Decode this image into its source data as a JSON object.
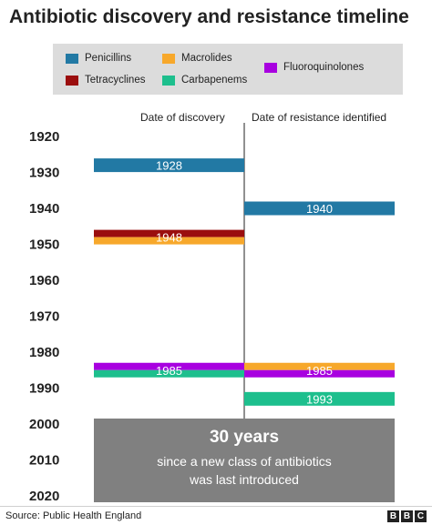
{
  "page": {
    "title": "Antibiotic discovery and resistance timeline",
    "source": "Source: Public Health England",
    "logo_letters": [
      "B",
      "B",
      "C"
    ]
  },
  "colors": {
    "Penicillins": "#2279a4",
    "Macrolides": "#f7a82b",
    "Fluoroquinolones": "#a800e0",
    "Tetracyclines": "#9b0e0e",
    "Carbapenems": "#1dbf8d",
    "note_bg": "#808080",
    "axis_line": "#222222"
  },
  "legend": {
    "items": [
      {
        "label": "Penicillins",
        "color": "#2279a4"
      },
      {
        "label": "Macrolides",
        "color": "#f7a82b"
      },
      {
        "label": "Fluoroquinolones",
        "color": "#a800e0"
      },
      {
        "label": "Tetracyclines",
        "color": "#9b0e0e"
      },
      {
        "label": "Carbapenems",
        "color": "#1dbf8d"
      }
    ]
  },
  "columns": {
    "discovery": "Date of discovery",
    "resistance": "Date of resistance identified"
  },
  "note": {
    "headline": "30 years",
    "line1": "since a new class of antibiotics",
    "line2": "was last introduced"
  },
  "chart_data": {
    "type": "bar",
    "title": "Antibiotic discovery and resistance timeline",
    "ylim": [
      1920,
      2020
    ],
    "y_ticks": [
      1920,
      1930,
      1940,
      1950,
      1960,
      1970,
      1980,
      1990,
      2000,
      2010,
      2020
    ],
    "legend_placement": "top",
    "discovery": [
      {
        "class": "Penicillins",
        "year": 1928,
        "label": "1928"
      },
      {
        "class": "Tetracyclines",
        "year": 1948,
        "label": "1948"
      },
      {
        "class": "Macrolides",
        "year": 1948,
        "label": ""
      },
      {
        "class": "Fluoroquinolones",
        "year": 1985,
        "label": "1985"
      },
      {
        "class": "Carbapenems",
        "year": 1985,
        "label": ""
      }
    ],
    "resistance": [
      {
        "class": "Penicillins",
        "year": 1940,
        "label": "1940"
      },
      {
        "class": "Macrolides",
        "year": 1985,
        "label": ""
      },
      {
        "class": "Fluoroquinolones",
        "year": 1985,
        "label": "1985"
      },
      {
        "class": "Carbapenems",
        "year": 1993,
        "label": "1993"
      }
    ]
  }
}
